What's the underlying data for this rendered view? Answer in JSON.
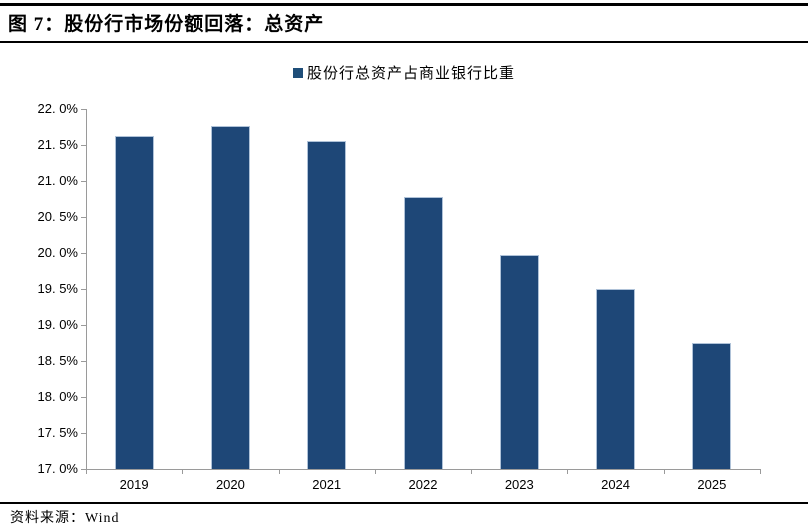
{
  "header": {
    "title": "图 7：股份行市场份额回落：总资产"
  },
  "legend": {
    "label": "股份行总资产占商业银行比重",
    "marker_color": "#1F4E79"
  },
  "chart_data": {
    "type": "bar",
    "title": "股份行市场份额回落：总资产",
    "series_name": "股份行总资产占商业银行比重",
    "categories": [
      "2019",
      "2020",
      "2021",
      "2022",
      "2023",
      "2024",
      "2025"
    ],
    "values": [
      21.62,
      21.76,
      21.55,
      20.78,
      19.97,
      19.5,
      18.75
    ],
    "unit": "%",
    "ylim": [
      17.0,
      22.0
    ],
    "ytick_step": 0.5,
    "ytick_labels": [
      "17. 0%",
      "17. 5%",
      "18. 0%",
      "18. 5%",
      "19. 0%",
      "19. 5%",
      "20. 0%",
      "20. 5%",
      "21. 0%",
      "21. 5%",
      "22. 0%"
    ],
    "grid": false,
    "legend_position": "top-center",
    "bar_color": "#1E4777",
    "bar_border_color": "#AFC2D8",
    "axis_color": "#9A9A9A"
  },
  "footer": {
    "source_label": "资料来源：Wind"
  }
}
